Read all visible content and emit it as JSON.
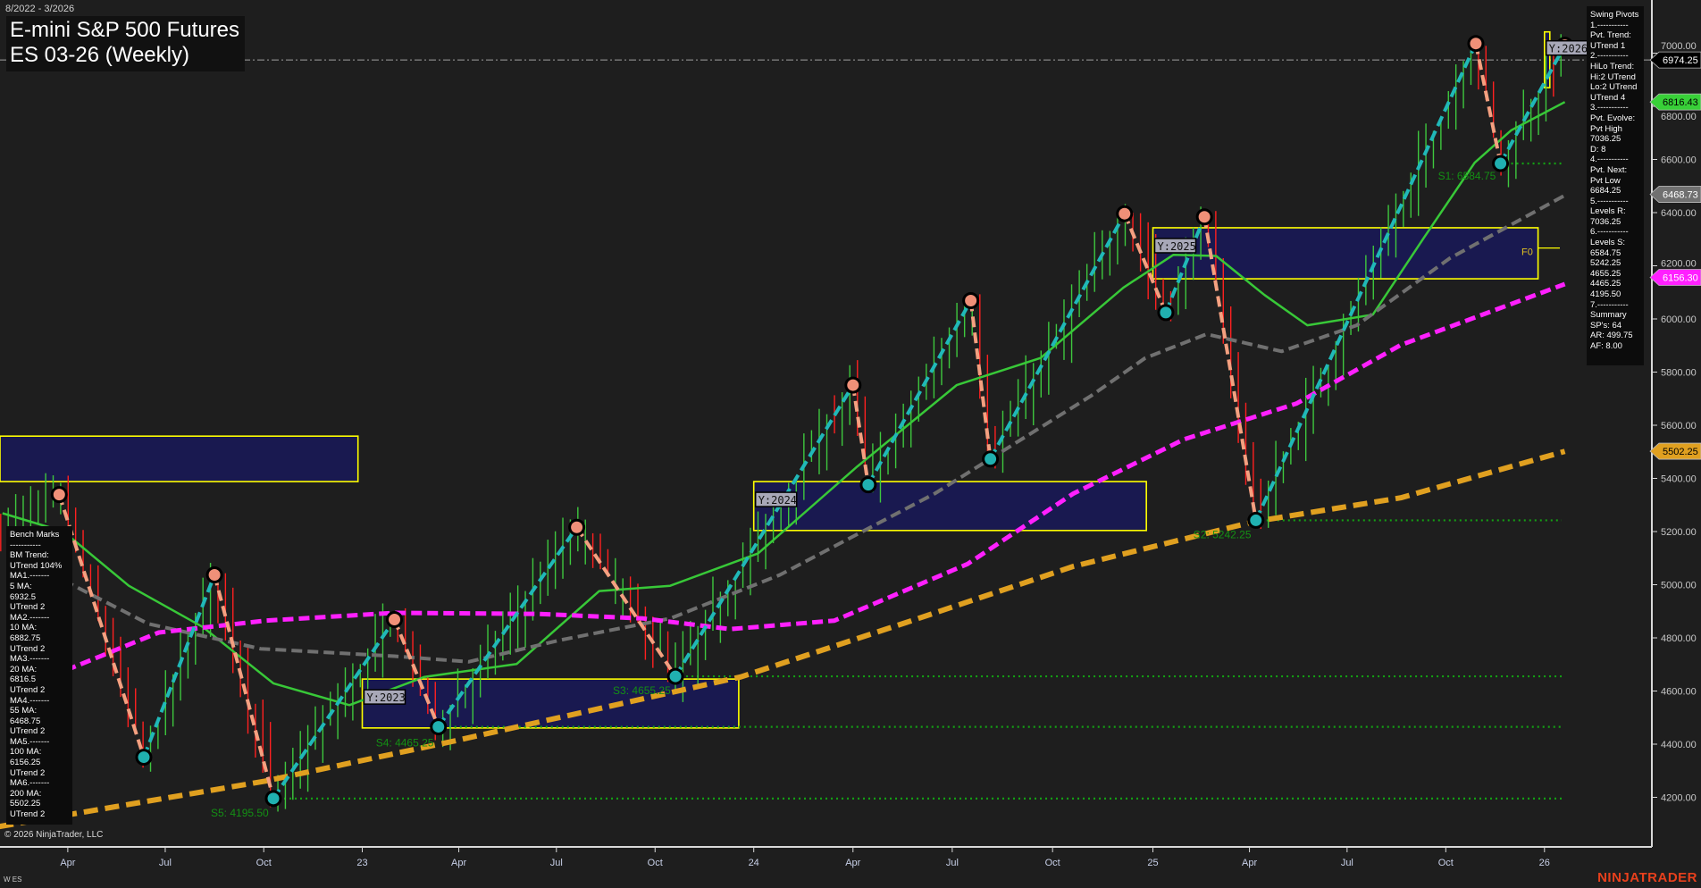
{
  "header": {
    "date_range": "8/2022 - 3/2026",
    "title_line1": "E-mini S&P 500 Futures",
    "title_line2": "ES 03-26 (Weekly)"
  },
  "footer": {
    "copyright": "© 2026 NinjaTrader, LLC",
    "instrument_code": "W ES",
    "brand": "NINJATRADER"
  },
  "swing_pivots_panel": {
    "lines": [
      "Swing Pivots",
      "1.-----------",
      "Pvt. Trend:",
      "UTrend 1",
      "2.-----------",
      "HiLo Trend:",
      "Hi:2 UTrend",
      "Lo:2 UTrend",
      "UTrend 4",
      "3.-----------",
      "Pvt. Evolve:",
      "Pvt High",
      "7036.25",
      "D: 8",
      "4.-----------",
      "Pvt. Next:",
      "Pvt Low",
      "6684.25",
      "5.-----------",
      "Levels R:",
      "7036.25",
      "6.-----------",
      "Levels S:",
      "6584.75",
      "5242.25",
      "4655.25",
      "4465.25",
      "4195.50",
      "7.-----------",
      "Summary",
      "SP's: 64",
      "AR: 499.75",
      "AF: 8.00"
    ]
  },
  "bench_marks_panel": {
    "lines": [
      "Bench Marks",
      "-----------",
      "BM Trend:",
      "UTrend 104%",
      "MA1.-------",
      "5 MA:",
      "6932.5",
      "UTrend 2",
      "MA2.-------",
      "10 MA:",
      "6882.75",
      "UTrend 2",
      "MA3.-------",
      "20 MA:",
      "6816.5",
      "UTrend 2",
      "MA4.-------",
      "55 MA:",
      "6468.75",
      "UTrend 2",
      "MA5.-------",
      "100 MA:",
      "6156.25",
      "UTrend 2",
      "MA6.-------",
      "200 MA:",
      "5502.25",
      "UTrend 2"
    ]
  },
  "colors": {
    "background": "#1e1e1e",
    "up_bar": "#3ec83e",
    "down_bar": "#ff2020",
    "ma20": "#38c838",
    "ma55": "#707070",
    "ma100": "#ff20ff",
    "ma200": "#e0a020",
    "zigzag_down": "#f4a080",
    "zigzag_up": "#20b8b8",
    "zone_fill": "#191950",
    "zone_border": "#ffff00",
    "support_level": "#14a014",
    "last_price_line": "#a0a0a0"
  },
  "chart_data": {
    "type": "line",
    "title": "E-mini S&P 500 Futures ES 03-26 (Weekly)",
    "y_scale": "linear",
    "ylim": [
      4050,
      7050
    ],
    "y_ticks": [
      "7000.00",
      "6800.00",
      "6600.00",
      "6400.00",
      "6200.00",
      "6000.00",
      "5800.00",
      "5600.00",
      "5400.00",
      "5200.00",
      "5000.00",
      "4800.00",
      "4600.00",
      "4400.00",
      "4200.00"
    ],
    "x_ticks": [
      {
        "label": "Apr",
        "date": "2022-04-01"
      },
      {
        "label": "Jul",
        "date": "2022-07-01"
      },
      {
        "label": "Oct",
        "date": "2022-10-01"
      },
      {
        "label": "23",
        "date": "2023-01-01"
      },
      {
        "label": "Apr",
        "date": "2023-04-01"
      },
      {
        "label": "Jul",
        "date": "2023-07-01"
      },
      {
        "label": "Oct",
        "date": "2023-10-01"
      },
      {
        "label": "24",
        "date": "2024-01-01"
      },
      {
        "label": "Apr",
        "date": "2024-04-01"
      },
      {
        "label": "Jul",
        "date": "2024-07-01"
      },
      {
        "label": "Oct",
        "date": "2024-10-01"
      },
      {
        "label": "25",
        "date": "2025-01-01"
      },
      {
        "label": "Apr",
        "date": "2025-04-01"
      },
      {
        "label": "Jul",
        "date": "2025-07-01"
      },
      {
        "label": "Oct",
        "date": "2025-10-01"
      },
      {
        "label": "26",
        "date": "2026-01-01"
      }
    ],
    "price_tags": [
      {
        "value": "6974.25",
        "bg": "#000000",
        "fg": "#ffffff"
      },
      {
        "value": "6816.43",
        "bg": "#38d038",
        "fg": "#000000"
      },
      {
        "value": "6468.73",
        "bg": "#707070",
        "fg": "#ffffff"
      },
      {
        "value": "6156.30",
        "bg": "#ff20ff",
        "fg": "#ffffff"
      },
      {
        "value": "5502.25",
        "bg": "#e0a020",
        "fg": "#000000"
      }
    ],
    "last_price": 6974.25,
    "swing_pivots": [
      {
        "date": "2022-03-24",
        "price": 5339,
        "type": "high"
      },
      {
        "date": "2022-06-11",
        "price": 4351,
        "type": "low"
      },
      {
        "date": "2022-08-16",
        "price": 5037,
        "type": "high"
      },
      {
        "date": "2022-10-10",
        "price": 4195.5,
        "type": "low"
      },
      {
        "date": "2023-01-31",
        "price": 4869,
        "type": "high"
      },
      {
        "date": "2023-03-13",
        "price": 4465.25,
        "type": "low"
      },
      {
        "date": "2023-07-20",
        "price": 5216,
        "type": "high"
      },
      {
        "date": "2023-10-20",
        "price": 4655.25,
        "type": "low"
      },
      {
        "date": "2024-04-01",
        "price": 5751,
        "type": "high"
      },
      {
        "date": "2024-04-15",
        "price": 5376,
        "type": "low"
      },
      {
        "date": "2024-07-18",
        "price": 6069,
        "type": "high"
      },
      {
        "date": "2024-08-05",
        "price": 5473,
        "type": "low"
      },
      {
        "date": "2024-12-06",
        "price": 6396,
        "type": "high"
      },
      {
        "date": "2025-01-13",
        "price": 6024,
        "type": "low"
      },
      {
        "date": "2025-02-18",
        "price": 6384,
        "type": "high"
      },
      {
        "date": "2025-04-07",
        "price": 5242.25,
        "type": "low"
      },
      {
        "date": "2025-10-29",
        "price": 7036.25,
        "type": "high"
      },
      {
        "date": "2025-11-21",
        "price": 6584.75,
        "type": "low"
      },
      {
        "date": "2026-01-20",
        "price": 7030,
        "type": "high"
      }
    ],
    "series": [
      {
        "name": "20 MA",
        "color": "#38c838",
        "points": [
          [
            "2022-01-30",
            5269
          ],
          [
            "2022-03-28",
            5200
          ],
          [
            "2022-05-28",
            4996
          ],
          [
            "2022-08-05",
            4841
          ],
          [
            "2022-10-10",
            4629
          ],
          [
            "2022-12-20",
            4547
          ],
          [
            "2023-02-28",
            4653
          ],
          [
            "2023-05-25",
            4702
          ],
          [
            "2023-08-10",
            4976
          ],
          [
            "2023-10-15",
            4996
          ],
          [
            "2024-01-05",
            5118
          ],
          [
            "2024-04-05",
            5445
          ],
          [
            "2024-07-05",
            5751
          ],
          [
            "2024-09-20",
            5853
          ],
          [
            "2024-12-05",
            6118
          ],
          [
            "2025-01-20",
            6241
          ],
          [
            "2025-03-01",
            6237
          ],
          [
            "2025-04-15",
            6090
          ],
          [
            "2025-05-25",
            5976
          ],
          [
            "2025-07-25",
            6016
          ],
          [
            "2025-09-10",
            6302
          ],
          [
            "2025-10-28",
            6588
          ],
          [
            "2025-12-01",
            6710
          ],
          [
            "2026-01-20",
            6816
          ]
        ]
      },
      {
        "name": "55 MA",
        "color": "#707070",
        "points": [
          [
            "2022-03-28",
            5016
          ],
          [
            "2022-06-15",
            4853
          ],
          [
            "2022-09-28",
            4759
          ],
          [
            "2023-01-31",
            4731
          ],
          [
            "2023-04-10",
            4710
          ],
          [
            "2023-07-05",
            4792
          ],
          [
            "2023-10-15",
            4873
          ],
          [
            "2024-01-25",
            5037
          ],
          [
            "2024-06-15",
            5343
          ],
          [
            "2024-11-05",
            5710
          ],
          [
            "2024-12-25",
            5853
          ],
          [
            "2025-02-20",
            5943
          ],
          [
            "2025-05-01",
            5878
          ],
          [
            "2025-07-10",
            5976
          ],
          [
            "2025-10-05",
            6229
          ],
          [
            "2026-01-20",
            6465
          ]
        ]
      },
      {
        "name": "100 MA",
        "color": "#ff20ff",
        "points": [
          [
            "2022-03-30",
            4678
          ],
          [
            "2022-06-25",
            4820
          ],
          [
            "2022-10-03",
            4865
          ],
          [
            "2023-01-31",
            4894
          ],
          [
            "2023-06-15",
            4890
          ],
          [
            "2023-09-20",
            4873
          ],
          [
            "2023-12-10",
            4833
          ],
          [
            "2024-03-15",
            4865
          ],
          [
            "2024-07-15",
            5078
          ],
          [
            "2024-10-20",
            5343
          ],
          [
            "2025-01-30",
            5547
          ],
          [
            "2025-05-15",
            5682
          ],
          [
            "2025-08-20",
            5902
          ],
          [
            "2026-01-20",
            6131
          ]
        ]
      },
      {
        "name": "200 MA",
        "color": "#e0a020",
        "points": [
          [
            "2022-01-27",
            4090
          ],
          [
            "2022-10-02",
            4261
          ],
          [
            "2023-03-28",
            4412
          ],
          [
            "2023-12-20",
            4653
          ],
          [
            "2024-05-25",
            4865
          ],
          [
            "2024-10-20",
            5069
          ],
          [
            "2025-04-05",
            5237
          ],
          [
            "2025-08-20",
            5327
          ],
          [
            "2026-01-20",
            5502
          ]
        ]
      }
    ],
    "yearly_zones": [
      {
        "label": "",
        "start": "2022-01-27",
        "end": "2022-12-28",
        "top": 5559,
        "bottom": 5388
      },
      {
        "label": "Y:2023",
        "start": "2023-01-01",
        "end": "2023-12-18",
        "top": 4645,
        "bottom": 4461
      },
      {
        "label": "Y:2024",
        "start": "2024-01-01",
        "end": "2024-12-26",
        "top": 5388,
        "bottom": 5204
      },
      {
        "label": "Y:2025",
        "start": "2025-01-01",
        "end": "2025-12-26",
        "top": 6343,
        "bottom": 6151
      },
      {
        "label": "Y:2026",
        "start": "2026-01-01",
        "end": "2026-01-06",
        "top": 7080,
        "bottom": 6870
      }
    ],
    "support_levels": [
      {
        "label": "S1: 6584.75",
        "value": 6584.75,
        "from": "2025-11-21"
      },
      {
        "label": "S2: 5242.25",
        "value": 5242.25,
        "from": "2025-04-07"
      },
      {
        "label": "S3: 4655.25",
        "value": 4655.25,
        "from": "2023-10-20"
      },
      {
        "label": "S4: 4465.25",
        "value": 4465.25,
        "from": "2023-03-13"
      },
      {
        "label": "S5: 4195.50",
        "value": 4195.5,
        "from": "2022-10-10"
      }
    ],
    "f0_label": "F0",
    "f0_value": 6250
  }
}
